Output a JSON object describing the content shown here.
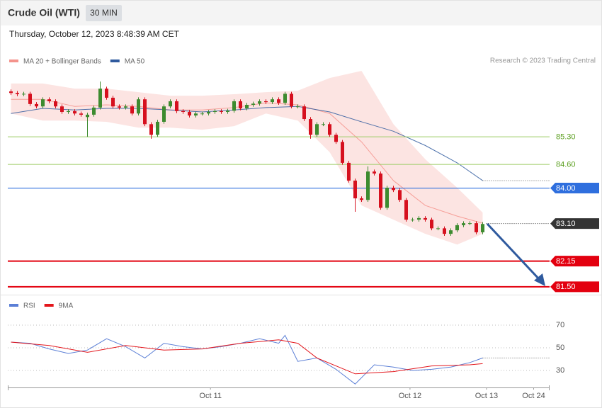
{
  "header": {
    "title": "Crude Oil (WTI)",
    "interval": "30 MIN",
    "timestamp": "Thursday, October 12, 2023 8:48:39 AM CET"
  },
  "chart_data": [
    {
      "type": "candlestick",
      "legend": [
        {
          "name": "MA 20 + Bollinger Bands",
          "color": "#f4938c"
        },
        {
          "name": "MA 50",
          "color": "#2f5a9e"
        }
      ],
      "credit": "Research © 2023 Trading Central",
      "up_color": "#3d8b2f",
      "down_color": "#d6101e",
      "open": [
        86.45,
        86.41,
        86.38,
        86.39,
        86.13,
        86.07,
        86.25,
        86.2,
        86.07,
        85.93,
        85.95,
        85.89,
        85.8,
        85.86,
        86.04,
        86.52,
        86.29,
        86.07,
        86.04,
        86.07,
        85.89,
        86.25,
        85.62,
        85.35,
        85.68,
        86.07,
        86.2,
        85.95,
        85.93,
        85.84,
        85.89,
        85.89,
        85.93,
        85.95,
        85.93,
        85.96,
        86.2,
        86.02,
        86.11,
        86.14,
        86.2,
        86.18,
        86.25,
        86.16,
        86.39,
        86.07,
        86.07,
        85.75,
        85.35,
        85.62,
        85.62,
        85.35,
        85.17,
        84.64,
        84.19,
        83.74,
        83.7,
        84.42,
        84.37,
        83.5,
        84.01,
        83.95,
        83.7,
        83.2,
        83.2,
        83.24,
        83.2,
        82.98,
        82.98,
        82.84,
        82.93,
        83.06,
        83.11,
        83.11,
        82.88
      ],
      "high": [
        86.5,
        86.46,
        86.44,
        86.44,
        86.18,
        86.3,
        86.3,
        86.25,
        86.12,
        86.0,
        86.0,
        85.94,
        85.91,
        86.09,
        86.7,
        86.57,
        86.34,
        86.12,
        86.12,
        86.12,
        86.3,
        86.3,
        85.67,
        85.73,
        86.12,
        86.25,
        86.25,
        86.0,
        85.98,
        85.94,
        85.94,
        85.98,
        86.0,
        86.0,
        86.01,
        86.25,
        86.25,
        86.16,
        86.19,
        86.25,
        86.25,
        86.3,
        86.3,
        86.44,
        86.44,
        86.12,
        86.12,
        85.8,
        85.67,
        85.67,
        85.67,
        85.4,
        85.22,
        84.69,
        84.24,
        83.79,
        84.55,
        84.47,
        84.42,
        84.06,
        84.06,
        84.0,
        83.75,
        83.25,
        83.29,
        83.29,
        83.25,
        83.03,
        83.03,
        82.98,
        83.11,
        83.16,
        83.16,
        83.16,
        83.14
      ],
      "low": [
        86.36,
        86.33,
        86.33,
        86.08,
        86.02,
        86.02,
        86.15,
        86.02,
        85.88,
        85.88,
        85.84,
        85.81,
        85.3,
        85.81,
        85.99,
        86.24,
        86.02,
        85.99,
        85.99,
        85.84,
        85.84,
        85.57,
        85.25,
        85.3,
        85.63,
        86.02,
        85.9,
        85.88,
        85.79,
        85.79,
        85.84,
        85.84,
        85.88,
        85.88,
        85.88,
        85.91,
        85.97,
        85.97,
        86.06,
        86.09,
        86.13,
        86.13,
        86.11,
        86.11,
        86.02,
        86.02,
        85.7,
        85.25,
        85.3,
        85.57,
        85.3,
        85.12,
        84.59,
        84.14,
        83.4,
        83.65,
        83.65,
        84.32,
        83.45,
        83.45,
        83.9,
        83.65,
        83.15,
        83.15,
        83.15,
        83.15,
        82.93,
        82.93,
        82.79,
        82.79,
        82.88,
        83.01,
        83.06,
        82.83,
        82.83
      ],
      "close": [
        86.41,
        86.38,
        86.39,
        86.13,
        86.07,
        86.25,
        86.2,
        86.07,
        85.93,
        85.95,
        85.89,
        85.86,
        85.86,
        86.04,
        86.52,
        86.29,
        86.07,
        86.04,
        86.07,
        85.89,
        86.25,
        85.62,
        85.35,
        85.68,
        86.07,
        86.2,
        85.95,
        85.93,
        85.84,
        85.89,
        85.89,
        85.93,
        85.95,
        85.93,
        85.96,
        86.2,
        86.02,
        86.11,
        86.14,
        86.2,
        86.18,
        86.25,
        86.16,
        86.39,
        86.07,
        86.07,
        85.75,
        85.35,
        85.62,
        85.62,
        85.35,
        85.17,
        84.64,
        84.19,
        83.74,
        83.7,
        84.42,
        84.37,
        83.5,
        84.01,
        83.95,
        83.7,
        83.2,
        83.2,
        83.24,
        83.2,
        82.98,
        82.98,
        82.84,
        82.93,
        83.06,
        83.11,
        83.11,
        82.88,
        83.09
      ],
      "overlay_x": [
        0,
        5,
        10,
        15,
        20,
        25,
        30,
        35,
        40,
        45,
        50,
        55,
        60,
        65,
        70,
        74
      ],
      "ma20": [
        86.25,
        86.25,
        86.07,
        86.11,
        86.07,
        85.98,
        85.98,
        86.04,
        86.16,
        86.11,
        85.89,
        85.17,
        84.19,
        83.56,
        83.29,
        83.11
      ],
      "bb_upper": [
        86.65,
        86.65,
        86.52,
        86.52,
        86.43,
        86.34,
        86.34,
        86.38,
        86.43,
        86.47,
        86.79,
        86.97,
        85.62,
        84.73,
        84.01,
        83.38
      ],
      "bb_lower": [
        85.89,
        85.71,
        85.71,
        85.68,
        85.53,
        85.53,
        85.48,
        85.57,
        85.89,
        85.71,
        84.91,
        83.56,
        83.2,
        82.84,
        82.57,
        82.84
      ],
      "ma50": [
        85.89,
        86.02,
        85.98,
        86.02,
        86.02,
        85.98,
        85.93,
        85.98,
        86.04,
        86.07,
        85.93,
        85.68,
        85.44,
        85.08,
        84.64,
        84.19
      ],
      "levels": [
        {
          "value": 85.3,
          "label": "85.30",
          "color": "#9ccc65",
          "text_color": "#5a9e1e",
          "width": 1,
          "line": "solid",
          "box": false
        },
        {
          "value": 84.6,
          "label": "84.60",
          "color": "#9ccc65",
          "text_color": "#5a9e1e",
          "width": 1,
          "line": "solid",
          "box": false
        },
        {
          "value": 84,
          "label": "84.00",
          "color": "#2f6fde",
          "text_color": "#ffffff",
          "width": 1.2,
          "line": "solid",
          "box": true
        },
        {
          "value": 83.1,
          "label": "83.10",
          "color": "#333333",
          "text_color": "#ffffff",
          "width": 1,
          "line": "dotted",
          "box": true
        },
        {
          "value": 82.15,
          "label": "82.15",
          "color": "#e3000f",
          "text_color": "#ffffff",
          "width": 2,
          "line": "solid",
          "box": true
        },
        {
          "value": 81.5,
          "label": "81.50",
          "color": "#e3000f",
          "text_color": "#ffffff",
          "width": 2,
          "line": "solid",
          "box": true
        }
      ],
      "xlim": [
        -0.5,
        84.5
      ],
      "ylim": [
        81.31,
        87.51
      ]
    },
    {
      "type": "line",
      "series": [
        {
          "name": "RSI",
          "color": "#5b7fd6",
          "x": [
            0,
            3,
            6,
            9,
            12,
            15,
            18,
            21,
            24,
            27,
            30,
            33,
            36,
            39,
            42,
            43,
            45,
            48,
            51,
            54,
            57,
            60,
            63,
            66,
            69,
            72,
            74
          ],
          "values": [
            55,
            54,
            49,
            45,
            48,
            58,
            51,
            41,
            54,
            51,
            49,
            51,
            54,
            58,
            54,
            61,
            38,
            41,
            31,
            18,
            35,
            33,
            30,
            31,
            33,
            37,
            41
          ]
        },
        {
          "name": "9MA",
          "color": "#e3161c",
          "x": [
            0,
            6,
            12,
            18,
            24,
            30,
            36,
            42,
            45,
            48,
            54,
            60,
            66,
            72,
            74
          ],
          "values": [
            55,
            52,
            46,
            52,
            48,
            49,
            54,
            57,
            54,
            41,
            27,
            29,
            34,
            35,
            36
          ]
        }
      ],
      "ylim": [
        16,
        94
      ],
      "yticks": [
        70,
        50,
        30
      ],
      "xlim": [
        -0.5,
        84.5
      ],
      "xticks": [
        {
          "value": 31.3,
          "label": "Oct 11"
        },
        {
          "value": 62.6,
          "label": "Oct 12"
        },
        {
          "value": 74.6,
          "label": "Oct 13"
        },
        {
          "value": 82,
          "label": "Oct 24"
        }
      ]
    }
  ]
}
